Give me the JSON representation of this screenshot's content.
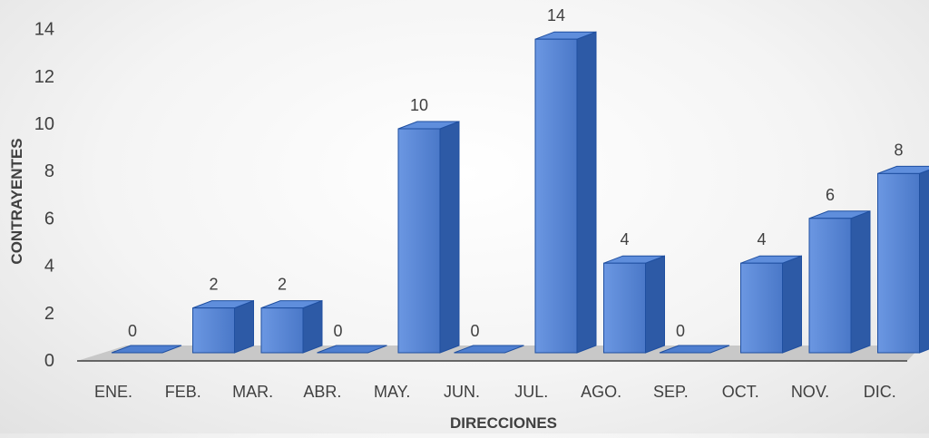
{
  "chart_data": {
    "type": "bar",
    "style": "3d-column",
    "categories": [
      "ENE.",
      "FEB.",
      "MAR.",
      "ABR.",
      "MAY.",
      "JUN.",
      "JUL.",
      "AGO.",
      "SEP.",
      "OCT.",
      "NOV.",
      "DIC."
    ],
    "values": [
      0,
      2,
      2,
      0,
      10,
      0,
      14,
      4,
      0,
      4,
      6,
      8
    ],
    "xlabel": "DIRECCIONES",
    "ylabel": "CONTRAYENTES",
    "ylim": [
      0,
      14
    ],
    "yticks": [
      0,
      2,
      4,
      6,
      8,
      10,
      12,
      14
    ],
    "grid": false,
    "legend": "none",
    "colors": {
      "bar_front": "#4f7fd0",
      "bar_front_light": "#7aa5ea",
      "bar_side": "#2d5aa6",
      "bar_top": "#5f8edc",
      "bar_stroke": "#1f4fa0",
      "floor": "#c8c8c8",
      "axis": "#404040"
    }
  }
}
